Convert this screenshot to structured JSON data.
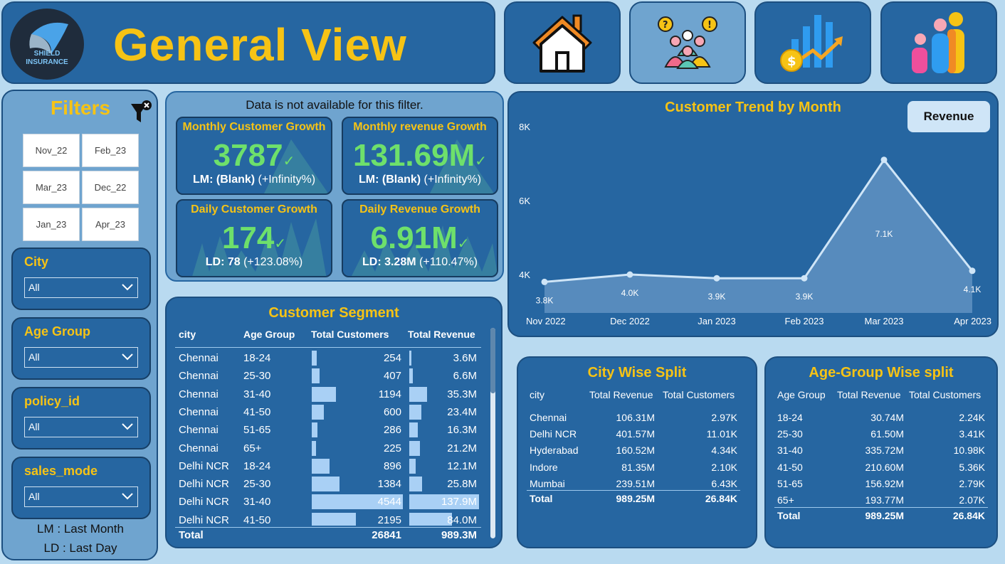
{
  "header": {
    "logo_text_1": "SHIELD",
    "logo_text_2": "INSURANCE",
    "title": "General View",
    "nav": [
      "home-icon",
      "customers-icon",
      "revenue-growth-icon",
      "age-group-icon"
    ]
  },
  "filters": {
    "title": "Filters",
    "months": [
      "Nov_22",
      "Feb_23",
      "Mar_23",
      "Dec_22",
      "Jan_23",
      "Apr_23"
    ],
    "slicers": [
      {
        "label": "City",
        "value": "All"
      },
      {
        "label": "Age Group",
        "value": "All"
      },
      {
        "label": "policy_id",
        "value": "All"
      },
      {
        "label": "sales_mode",
        "value": "All"
      }
    ],
    "note_lm": "LM : Last Month",
    "note_ld": "LD : Last Day"
  },
  "kpi": {
    "note": "Data is not available for this filter.",
    "cards": [
      {
        "title": "Monthly Customer Growth",
        "value": "3787",
        "sub_bold": "LM: (Blank)",
        "sub": "(+Infinity%)"
      },
      {
        "title": "Monthly revenue Growth",
        "value": "131.69M",
        "sub_bold": "LM: (Blank)",
        "sub": "(+Infinity%)"
      },
      {
        "title": "Daily Customer Growth",
        "value": "174",
        "sub_bold": "LD: 78",
        "sub": "(+123.08%)"
      },
      {
        "title": "Daily Revenue Growth",
        "value": "6.91M",
        "sub_bold": "LD: 3.28M",
        "sub": "(+110.47%)"
      }
    ]
  },
  "trend": {
    "title": "Customer Trend by Month",
    "button": "Revenue",
    "y_ticks": [
      "8K",
      "6K",
      "4K"
    ],
    "data_labels": [
      "3.8K",
      "4.0K",
      "3.9K",
      "3.9K",
      "7.1K",
      "4.1K"
    ],
    "colors": {
      "line": "#cfe5f7",
      "area": "#5d8fc0"
    }
  },
  "chart_data": {
    "type": "area",
    "title": "Customer Trend by Month",
    "categories": [
      "Nov 2022",
      "Dec 2022",
      "Jan 2023",
      "Feb 2023",
      "Mar 2023",
      "Apr 2023"
    ],
    "values": [
      3800,
      4000,
      3900,
      3900,
      7100,
      4100
    ],
    "ylim": [
      4000,
      8000
    ],
    "y_ticks": [
      4000,
      6000,
      8000
    ],
    "grid": false
  },
  "segment": {
    "title": "Customer Segment",
    "headers": [
      "city",
      "Age Group",
      "Total Customers",
      "Total Revenue"
    ],
    "rows": [
      {
        "city": "Chennai",
        "age": "18-24",
        "customers": "254",
        "cust_val": 254,
        "revenue": "3.6M",
        "rev_val": 3.6
      },
      {
        "city": "Chennai",
        "age": "25-30",
        "customers": "407",
        "cust_val": 407,
        "revenue": "6.6M",
        "rev_val": 6.6
      },
      {
        "city": "Chennai",
        "age": "31-40",
        "customers": "1194",
        "cust_val": 1194,
        "revenue": "35.3M",
        "rev_val": 35.3
      },
      {
        "city": "Chennai",
        "age": "41-50",
        "customers": "600",
        "cust_val": 600,
        "revenue": "23.4M",
        "rev_val": 23.4
      },
      {
        "city": "Chennai",
        "age": "51-65",
        "customers": "286",
        "cust_val": 286,
        "revenue": "16.3M",
        "rev_val": 16.3
      },
      {
        "city": "Chennai",
        "age": "65+",
        "customers": "225",
        "cust_val": 225,
        "revenue": "21.2M",
        "rev_val": 21.2
      },
      {
        "city": "Delhi NCR",
        "age": "18-24",
        "customers": "896",
        "cust_val": 896,
        "revenue": "12.1M",
        "rev_val": 12.1
      },
      {
        "city": "Delhi NCR",
        "age": "25-30",
        "customers": "1384",
        "cust_val": 1384,
        "revenue": "25.8M",
        "rev_val": 25.8
      },
      {
        "city": "Delhi NCR",
        "age": "31-40",
        "customers": "4544",
        "cust_val": 4544,
        "revenue": "137.9M",
        "rev_val": 137.9
      },
      {
        "city": "Delhi NCR",
        "age": "41-50",
        "customers": "2195",
        "cust_val": 2195,
        "revenue": "84.0M",
        "rev_val": 84.0
      }
    ],
    "total_label": "Total",
    "total_customers": "26841",
    "total_revenue": "989.3M"
  },
  "city_split": {
    "title": "City Wise Split",
    "headers": [
      "city",
      "Total Revenue",
      "Total Customers"
    ],
    "rows": [
      [
        "Chennai",
        "106.31M",
        "2.97K"
      ],
      [
        "Delhi NCR",
        "401.57M",
        "11.01K"
      ],
      [
        "Hyderabad",
        "160.52M",
        "4.34K"
      ],
      [
        "Indore",
        "81.35M",
        "2.10K"
      ],
      [
        "Mumbai",
        "239.51M",
        "6.43K"
      ]
    ],
    "total": [
      "Total",
      "989.25M",
      "26.84K"
    ]
  },
  "age_split": {
    "title": "Age-Group Wise split",
    "headers": [
      "Age Group",
      "Total Revenue",
      "Total Customers"
    ],
    "rows": [
      [
        "18-24",
        "30.74M",
        "2.24K"
      ],
      [
        "25-30",
        "61.50M",
        "3.41K"
      ],
      [
        "31-40",
        "335.72M",
        "10.98K"
      ],
      [
        "41-50",
        "210.60M",
        "5.36K"
      ],
      [
        "51-65",
        "156.92M",
        "2.79K"
      ],
      [
        "65+",
        "193.77M",
        "2.07K"
      ]
    ],
    "total": [
      "Total",
      "989.25M",
      "26.84K"
    ]
  }
}
